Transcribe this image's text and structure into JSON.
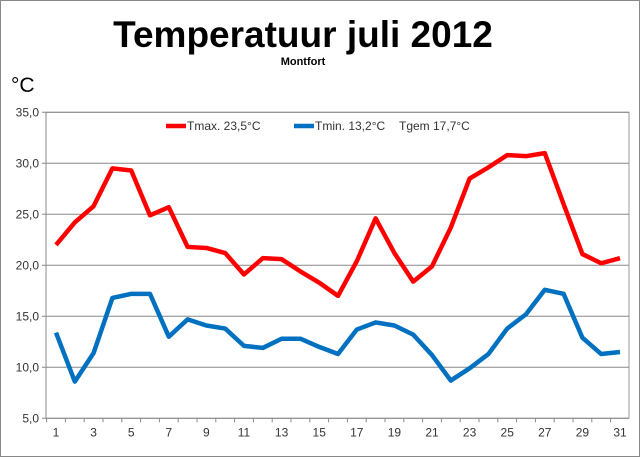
{
  "chart_data": {
    "type": "line",
    "title": "Temperatuur juli 2012",
    "subtitle": "Montfort",
    "ylabel": "°C",
    "xlabel": "",
    "ylim": [
      5,
      35
    ],
    "yticks": [
      "5,0",
      "10,0",
      "15,0",
      "20,0",
      "25,0",
      "30,0",
      "35,0"
    ],
    "ytick_values": [
      5,
      10,
      15,
      20,
      25,
      30,
      35
    ],
    "xticks": [
      "1",
      "3",
      "5",
      "7",
      "9",
      "11",
      "13",
      "15",
      "17",
      "19",
      "21",
      "23",
      "25",
      "27",
      "29",
      "31"
    ],
    "x": [
      1,
      2,
      3,
      4,
      5,
      6,
      7,
      8,
      9,
      10,
      11,
      12,
      13,
      14,
      15,
      16,
      17,
      18,
      19,
      20,
      21,
      22,
      23,
      24,
      25,
      26,
      27,
      28,
      29,
      30,
      31
    ],
    "grid": true,
    "legend_position": "top",
    "series": [
      {
        "name": "Tmax. 23,5°C",
        "color": "#ff0000",
        "values": [
          22.0,
          24.2,
          25.8,
          29.5,
          29.3,
          24.9,
          25.7,
          21.8,
          21.7,
          21.2,
          19.1,
          20.7,
          20.6,
          19.4,
          18.3,
          17.0,
          20.4,
          24.6,
          21.2,
          18.4,
          19.9,
          23.7,
          28.5,
          29.6,
          30.8,
          30.7,
          31.0,
          26.0,
          21.1,
          20.2,
          20.7
        ]
      },
      {
        "name": "Tmin. 13,2°C",
        "color": "#0070c0",
        "values": [
          13.4,
          8.6,
          11.4,
          16.8,
          17.2,
          17.2,
          13.0,
          14.7,
          14.1,
          13.8,
          12.1,
          11.9,
          12.8,
          12.8,
          12.0,
          11.3,
          13.7,
          14.4,
          14.1,
          13.2,
          11.2,
          8.7,
          9.9,
          11.3,
          13.8,
          15.2,
          17.6,
          17.2,
          12.9,
          11.3,
          11.5
        ]
      }
    ],
    "annotations": [
      "Tgem 17,7°C"
    ]
  }
}
